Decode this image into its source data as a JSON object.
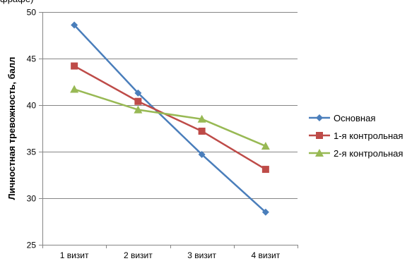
{
  "top_fragment": "фрафе)",
  "chart_data": {
    "type": "line",
    "categories": [
      "1 визит",
      "2 визит",
      "3 визит",
      "4 визит"
    ],
    "series": [
      {
        "name": "Основная",
        "values": [
          48.6,
          41.3,
          34.7,
          28.5
        ],
        "color": "#4a7ebb",
        "marker": "diamond"
      },
      {
        "name": "1-я контрольная",
        "values": [
          44.2,
          40.4,
          37.2,
          33.1
        ],
        "color": "#be4b48",
        "marker": "square"
      },
      {
        "name": "2-я контрольная",
        "values": [
          41.7,
          39.5,
          38.5,
          35.6
        ],
        "color": "#98b954",
        "marker": "triangle"
      }
    ],
    "ylabel": "Личностная тревожность, балл",
    "ylim": [
      25,
      50
    ],
    "yticks": [
      25,
      30,
      35,
      40,
      45,
      50
    ],
    "grid": true,
    "legend": "right"
  }
}
